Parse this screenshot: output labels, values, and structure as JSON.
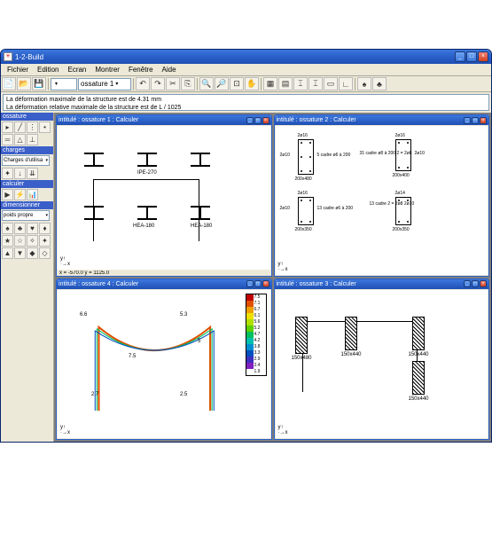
{
  "app": {
    "title": "1-2-Build"
  },
  "menu": [
    "Fichier",
    "Edition",
    "Ecran",
    "Montrer",
    "Fenêtre",
    "Aide"
  ],
  "toolbar": {
    "combo_element": "",
    "combo_ossature": "ossature 1"
  },
  "status": {
    "line1": "La déformation maximale de la structure est de 4.31 mm",
    "line2": "La déformation relative maximale de la structure est de L / 1025"
  },
  "sidebar": {
    "groups": [
      {
        "title": "ossature"
      },
      {
        "title": "charges",
        "combo": "Charges d'utilisa"
      },
      {
        "title": "calculer"
      },
      {
        "title": "dimensionner",
        "combo": "poids propre"
      }
    ]
  },
  "panels": {
    "p1": {
      "title": "intitulé : ossature 1 : Calculer",
      "profiles": {
        "top": "IPE-270",
        "bottom": "HEA-180"
      },
      "status": "x = -570.0 y = 1125.0"
    },
    "p2": {
      "title": "intitulé : ossature 2 : Calculer",
      "sections": [
        {
          "dim": "200x480",
          "bars": "5 cadre ø6 à 200",
          "top": "2ø16",
          "side": "2ø10"
        },
        {
          "dim": "200x400",
          "bars": "31 cadre ø8 à 200\n2 = 2ø8",
          "top": "2ø16",
          "side": "2ø10"
        },
        {
          "dim": "200x350",
          "bars": "13 cadre ø6 à 200",
          "top": "2ø16",
          "side": "2ø10"
        },
        {
          "dim": "200x350",
          "bars": "13 cadre\n2 = 2ø8\n2ø10",
          "top": "2ø14"
        }
      ]
    },
    "p3": {
      "title": "intitulé : ossature 3 : Calculer",
      "dims": [
        "150x480",
        "150x440",
        "150x440",
        "150x440"
      ]
    },
    "p4": {
      "title": "intitulé : ossature 4 : Calculer",
      "values": [
        "6.6",
        "5.3",
        "7.5",
        "5",
        "2.7",
        "2.5"
      ],
      "legend": {
        "colors": [
          "#c00000",
          "#e05000",
          "#f0a000",
          "#f0e000",
          "#b0e000",
          "#60d000",
          "#00c060",
          "#00c0b0",
          "#0090d0",
          "#0050c0",
          "#4030c0",
          "#8020c0"
        ],
        "vals": [
          "7.5",
          "7.1",
          "6.7",
          "6.1",
          "5.6",
          "5.2",
          "4.7",
          "4.2",
          "3.8",
          "3.3",
          "2.9",
          "2.4",
          "1.9"
        ]
      }
    }
  }
}
